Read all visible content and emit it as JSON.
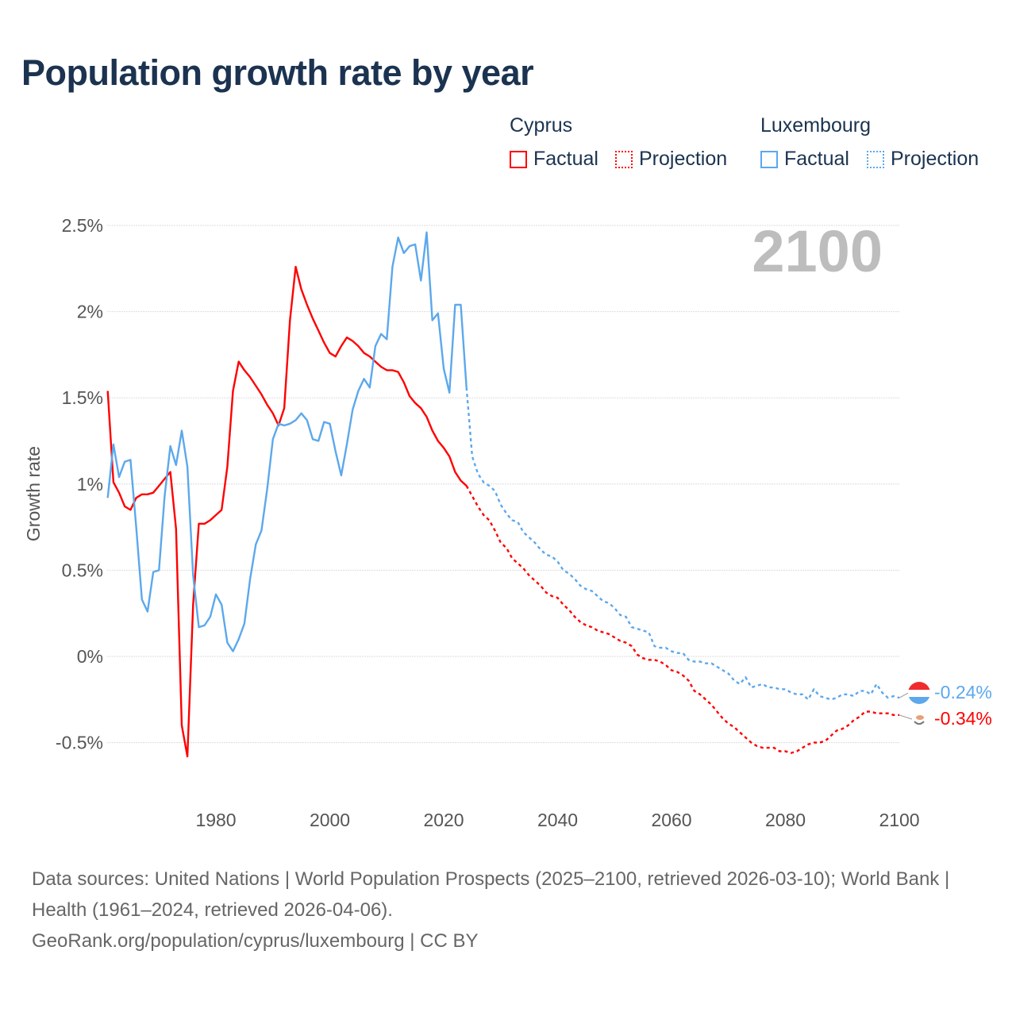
{
  "title": "Population growth rate by year",
  "legend": {
    "groups": [
      {
        "name": "Cyprus",
        "factual": "Factual",
        "projection": "Projection",
        "color": "#ff0000"
      },
      {
        "name": "Luxembourg",
        "factual": "Factual",
        "projection": "Projection",
        "color": "#5ca8ec"
      }
    ]
  },
  "year_overlay": "2100",
  "footer": {
    "line1": "Data sources: United Nations | World Population Prospects (2025–2100, retrieved 2026-03-10); World Bank | Health (1961–2024, retrieved 2026-04-06).",
    "line2": "GeoRank.org/population/cyprus/luxembourg | CC BY"
  },
  "chart_data": {
    "type": "line",
    "title": "Population growth rate by year",
    "xlabel": "",
    "ylabel": "Growth rate",
    "xlim": [
      1961,
      2100
    ],
    "ylim": [
      -0.75,
      2.6
    ],
    "x_ticks": [
      1980,
      2000,
      2020,
      2040,
      2060,
      2080,
      2100
    ],
    "y_ticks": [
      -0.5,
      0,
      0.5,
      1,
      1.5,
      2,
      2.5
    ],
    "y_tick_labels": [
      "-0.5%",
      "0%",
      "0.5%",
      "1%",
      "1.5%",
      "2%",
      "2.5%"
    ],
    "grid": true,
    "legend_position": "top-right",
    "end_labels": {
      "Luxembourg": "-0.24%",
      "Cyprus": "-0.34%"
    },
    "series": [
      {
        "name": "Cyprus Factual",
        "country": "Cyprus",
        "kind": "factual",
        "color": "#ff0000",
        "x_start": 1961,
        "values": [
          1.54,
          1.01,
          0.95,
          0.87,
          0.85,
          0.92,
          0.94,
          0.94,
          0.95,
          0.99,
          1.03,
          1.07,
          0.74,
          -0.4,
          -0.58,
          0.3,
          0.77,
          0.77,
          0.79,
          0.82,
          0.85,
          1.1,
          1.54,
          1.71,
          1.66,
          1.62,
          1.57,
          1.52,
          1.46,
          1.41,
          1.34,
          1.44,
          1.95,
          2.26,
          2.13,
          2.04,
          1.96,
          1.89,
          1.82,
          1.76,
          1.74,
          1.8,
          1.85,
          1.83,
          1.8,
          1.76,
          1.74,
          1.71,
          1.68,
          1.66,
          1.66,
          1.65,
          1.59,
          1.51,
          1.47,
          1.44,
          1.39,
          1.31,
          1.25,
          1.21,
          1.16,
          1.07,
          1.02,
          0.99
        ]
      },
      {
        "name": "Cyprus Projection",
        "country": "Cyprus",
        "kind": "projection",
        "color": "#ff0000",
        "x_start": 2024,
        "values": [
          0.99,
          0.93,
          0.87,
          0.82,
          0.79,
          0.73,
          0.66,
          0.63,
          0.57,
          0.54,
          0.51,
          0.47,
          0.44,
          0.41,
          0.37,
          0.35,
          0.34,
          0.3,
          0.27,
          0.23,
          0.2,
          0.18,
          0.17,
          0.15,
          0.14,
          0.13,
          0.11,
          0.09,
          0.08,
          0.06,
          0.01,
          -0.01,
          -0.02,
          -0.02,
          -0.03,
          -0.05,
          -0.08,
          -0.09,
          -0.11,
          -0.14,
          -0.2,
          -0.22,
          -0.25,
          -0.28,
          -0.32,
          -0.36,
          -0.39,
          -0.41,
          -0.44,
          -0.47,
          -0.5,
          -0.52,
          -0.53,
          -0.53,
          -0.53,
          -0.55,
          -0.55,
          -0.56,
          -0.55,
          -0.53,
          -0.51,
          -0.5,
          -0.5,
          -0.49,
          -0.46,
          -0.43,
          -0.42,
          -0.4,
          -0.37,
          -0.35,
          -0.32,
          -0.32,
          -0.33,
          -0.33,
          -0.33,
          -0.34,
          -0.34
        ]
      },
      {
        "name": "Luxembourg Factual",
        "country": "Luxembourg",
        "kind": "factual",
        "color": "#5ca8ec",
        "x_start": 1961,
        "values": [
          0.92,
          1.23,
          1.04,
          1.13,
          1.14,
          0.75,
          0.33,
          0.26,
          0.49,
          0.5,
          0.93,
          1.22,
          1.11,
          1.31,
          1.1,
          0.47,
          0.17,
          0.18,
          0.23,
          0.36,
          0.3,
          0.08,
          0.03,
          0.1,
          0.19,
          0.45,
          0.65,
          0.73,
          0.97,
          1.26,
          1.35,
          1.34,
          1.35,
          1.37,
          1.41,
          1.37,
          1.26,
          1.25,
          1.36,
          1.35,
          1.19,
          1.05,
          1.23,
          1.43,
          1.54,
          1.61,
          1.56,
          1.8,
          1.87,
          1.84,
          2.26,
          2.43,
          2.34,
          2.38,
          2.39,
          2.18,
          2.46,
          1.95,
          1.99,
          1.67,
          1.53,
          2.04,
          2.04,
          1.56
        ]
      },
      {
        "name": "Luxembourg Projection",
        "country": "Luxembourg",
        "kind": "projection",
        "color": "#5ca8ec",
        "x_start": 2024,
        "values": [
          1.56,
          1.16,
          1.06,
          1.01,
          0.99,
          0.96,
          0.88,
          0.83,
          0.79,
          0.78,
          0.72,
          0.69,
          0.66,
          0.62,
          0.59,
          0.58,
          0.55,
          0.5,
          0.48,
          0.45,
          0.41,
          0.39,
          0.38,
          0.35,
          0.32,
          0.31,
          0.28,
          0.24,
          0.23,
          0.17,
          0.16,
          0.15,
          0.14,
          0.06,
          0.05,
          0.05,
          0.03,
          0.02,
          0.02,
          -0.02,
          -0.03,
          -0.03,
          -0.04,
          -0.04,
          -0.06,
          -0.08,
          -0.1,
          -0.14,
          -0.16,
          -0.12,
          -0.18,
          -0.17,
          -0.16,
          -0.18,
          -0.18,
          -0.19,
          -0.19,
          -0.21,
          -0.22,
          -0.22,
          -0.25,
          -0.19,
          -0.23,
          -0.24,
          -0.25,
          -0.24,
          -0.22,
          -0.22,
          -0.23,
          -0.2,
          -0.2,
          -0.22,
          -0.16,
          -0.21,
          -0.24,
          -0.23,
          -0.24
        ]
      }
    ]
  }
}
